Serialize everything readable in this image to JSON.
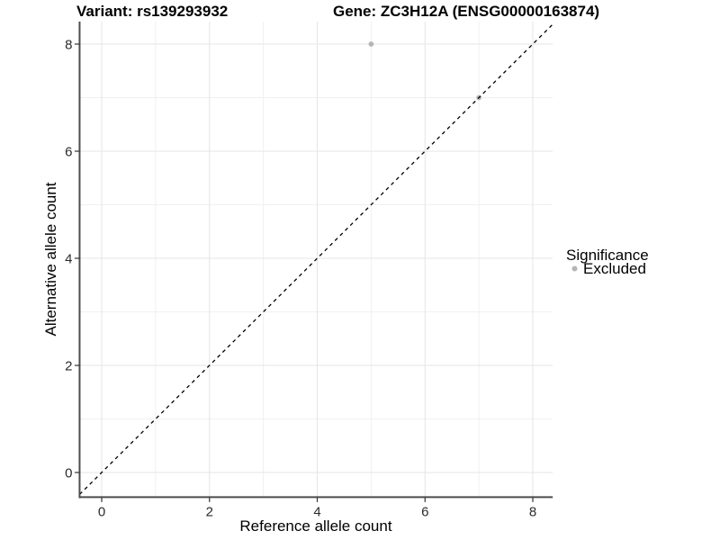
{
  "titles": {
    "left": "Variant: rs139293932",
    "right": "Gene: ZC3H12A (ENSG00000163874)"
  },
  "chart_data": {
    "type": "scatter",
    "xlabel": "Reference allele count",
    "ylabel": "Alternative allele count",
    "xlim": [
      -0.41,
      8.37
    ],
    "ylim": [
      -0.46,
      8.42
    ],
    "x_ticks": [
      0,
      2,
      4,
      6,
      8
    ],
    "y_ticks": [
      0,
      2,
      4,
      6,
      8
    ],
    "x_minor_ticks": [
      1,
      3,
      5,
      7
    ],
    "y_minor_ticks": [
      1,
      3,
      5,
      7
    ],
    "grid": "on",
    "points": [
      {
        "x": 5,
        "y": 8,
        "significance": "Excluded"
      },
      {
        "x": 7,
        "y": 7,
        "significance": "Excluded"
      }
    ],
    "point_color": "#b5b5b5",
    "reference_line": {
      "equation": "y = x",
      "style": "dashed",
      "color": "#000000"
    },
    "legend": {
      "position": "right",
      "title": "Significance",
      "items": [
        {
          "label": "Excluded",
          "marker": "circle",
          "color": "#b5b5b5"
        }
      ]
    }
  },
  "colors": {
    "background": "#ffffff",
    "grid_major": "#e6e6e6",
    "grid_minor": "#f0f0f0",
    "axis_line": "#4d4d4d",
    "tick_mark": "#333333"
  }
}
